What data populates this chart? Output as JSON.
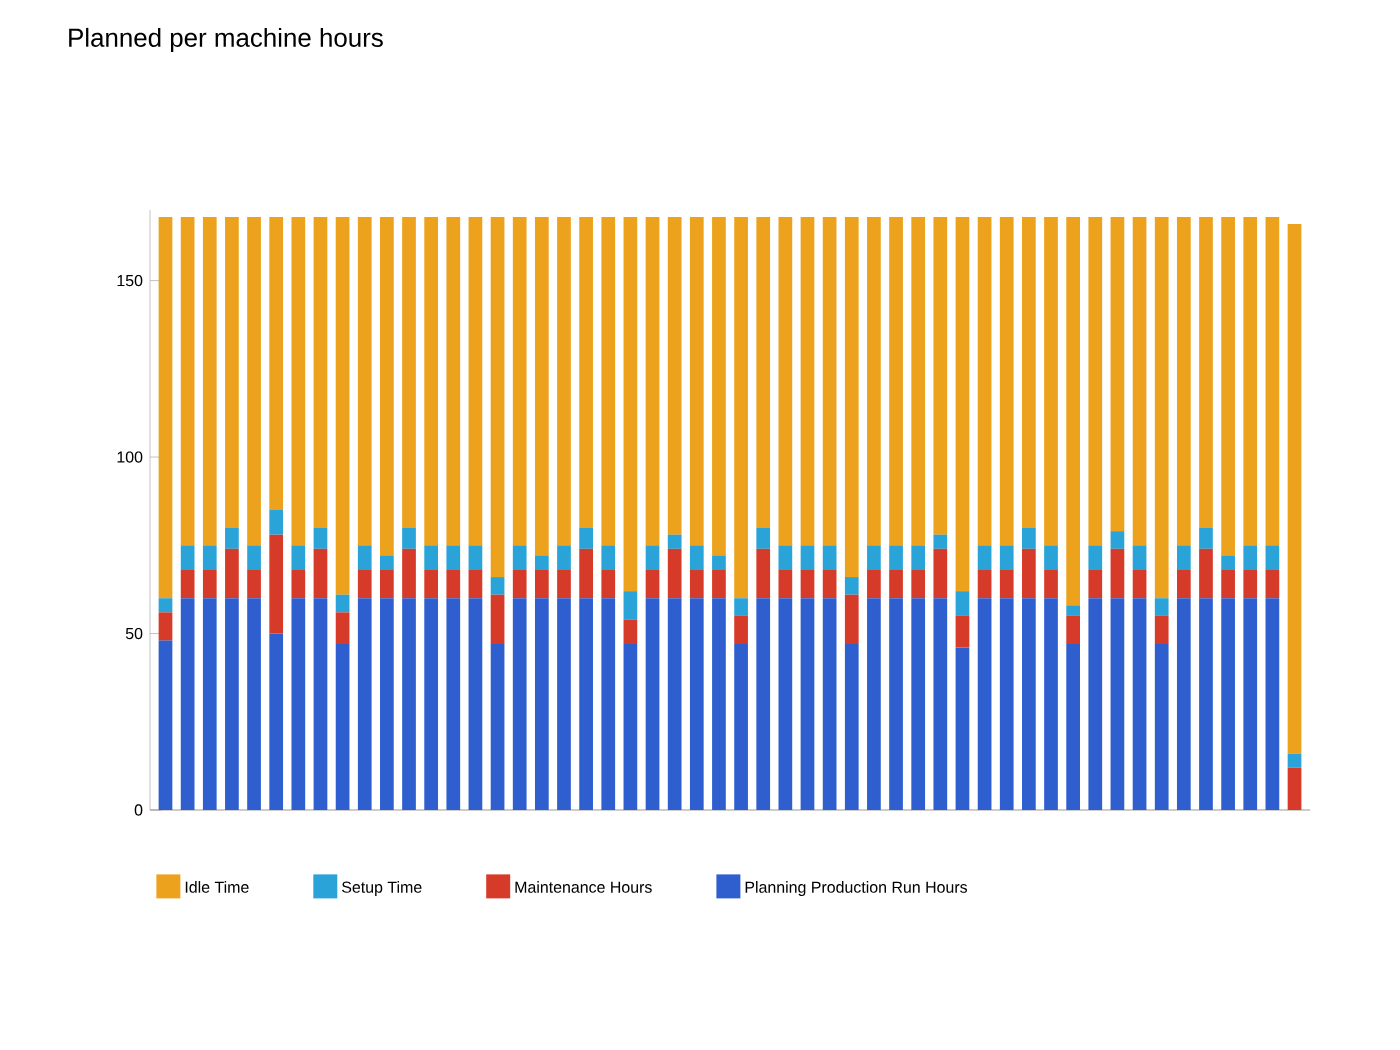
{
  "chart_data": {
    "type": "bar",
    "stacked": true,
    "title": "Planned per machine hours",
    "categories": [
      null,
      null,
      null,
      null,
      null,
      null,
      null,
      null,
      null,
      null,
      null,
      null,
      null,
      null,
      null,
      null,
      null,
      null,
      null,
      null,
      null,
      null,
      null,
      null,
      null,
      null,
      null,
      null,
      null,
      null,
      null,
      null,
      null,
      null,
      null,
      null,
      null,
      null,
      null,
      null,
      null,
      null,
      null,
      null,
      null,
      null,
      null,
      null,
      null,
      null,
      null,
      null
    ],
    "series": [
      {
        "name": "Planning Production Run Hours",
        "color": "#2f5fcf",
        "values": [
          48,
          60,
          60,
          60,
          60,
          50,
          60,
          60,
          47,
          60,
          60,
          60,
          60,
          60,
          60,
          47,
          60,
          60,
          60,
          60,
          60,
          47,
          60,
          60,
          60,
          60,
          47,
          60,
          60,
          60,
          60,
          47,
          60,
          60,
          60,
          60,
          46,
          60,
          60,
          60,
          60,
          47,
          60,
          60,
          60,
          47,
          60,
          60,
          60,
          60,
          60,
          0
        ]
      },
      {
        "name": "Maintenance Hours",
        "color": "#d63b2a",
        "values": [
          8,
          8,
          8,
          14,
          8,
          28,
          8,
          14,
          9,
          8,
          8,
          14,
          8,
          8,
          8,
          14,
          8,
          8,
          8,
          14,
          8,
          7,
          8,
          14,
          8,
          8,
          8,
          14,
          8,
          8,
          8,
          14,
          8,
          8,
          8,
          14,
          9,
          8,
          8,
          14,
          8,
          8,
          8,
          14,
          8,
          8,
          8,
          14,
          8,
          8,
          8,
          12
        ]
      },
      {
        "name": "Setup Time",
        "color": "#2aa4d8",
        "values": [
          4,
          7,
          7,
          6,
          7,
          7,
          7,
          6,
          5,
          7,
          4,
          6,
          7,
          7,
          7,
          5,
          7,
          4,
          7,
          6,
          7,
          8,
          7,
          4,
          7,
          4,
          5,
          6,
          7,
          7,
          7,
          5,
          7,
          7,
          7,
          4,
          7,
          7,
          7,
          6,
          7,
          3,
          7,
          5,
          7,
          5,
          7,
          6,
          4,
          7,
          7,
          4
        ]
      },
      {
        "name": "Idle Time",
        "color": "#eda21e",
        "values": [
          108,
          93,
          93,
          88,
          93,
          83,
          93,
          88,
          107,
          93,
          96,
          88,
          93,
          93,
          93,
          102,
          93,
          96,
          93,
          88,
          93,
          106,
          93,
          90,
          93,
          96,
          108,
          88,
          93,
          93,
          93,
          102,
          93,
          93,
          93,
          90,
          106,
          93,
          93,
          88,
          93,
          110,
          93,
          89,
          93,
          108,
          93,
          88,
          96,
          93,
          93,
          150
        ]
      }
    ],
    "ylim": [
      0,
      170
    ],
    "yticks": [
      0,
      50,
      100,
      150
    ],
    "grid": false,
    "legend": "bottom"
  }
}
